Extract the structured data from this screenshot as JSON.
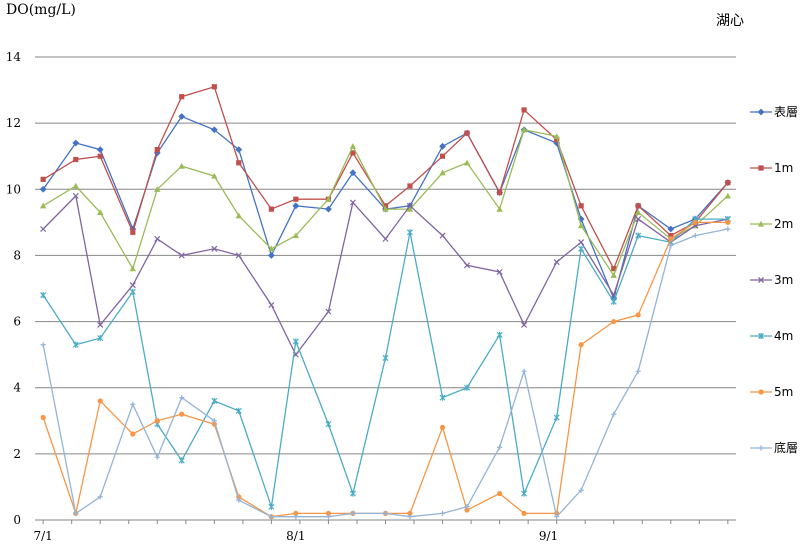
{
  "chart_data": {
    "type": "line",
    "title": "湖心",
    "ylabel": "DO(mg/L)",
    "xlabel": "",
    "ylim": [
      0,
      14
    ],
    "yticks": [
      0,
      2,
      4,
      6,
      8,
      10,
      12,
      14
    ],
    "grid": true,
    "legend_position": "right",
    "x_ticks": [
      {
        "label": "7/1",
        "x": 1
      },
      {
        "label": "8/1",
        "x": 32
      },
      {
        "label": "9/1",
        "x": 63
      }
    ],
    "x": [
      1,
      5,
      8,
      12,
      15,
      18,
      22,
      25,
      29,
      32,
      36,
      39,
      43,
      46,
      50,
      53,
      57,
      60,
      64,
      67,
      71,
      74,
      78,
      81,
      85
    ],
    "series": [
      {
        "name": "表層",
        "color": "#4472c4",
        "marker": "diamond",
        "values": [
          10.0,
          11.4,
          11.2,
          8.8,
          11.1,
          12.2,
          11.8,
          11.2,
          8.0,
          9.5,
          9.4,
          10.5,
          9.4,
          9.5,
          11.3,
          11.7,
          9.9,
          11.8,
          11.4,
          9.1,
          6.7,
          9.5,
          8.8,
          9.1,
          10.2
        ]
      },
      {
        "name": "1m",
        "color": "#c0504d",
        "marker": "square",
        "values": [
          10.3,
          10.9,
          11.0,
          8.7,
          11.2,
          12.8,
          13.1,
          10.8,
          9.4,
          9.7,
          9.7,
          11.1,
          9.5,
          10.1,
          11.0,
          11.7,
          9.9,
          12.4,
          11.5,
          9.5,
          7.6,
          9.5,
          8.6,
          9.0,
          10.2
        ]
      },
      {
        "name": "2m",
        "color": "#9bbb59",
        "marker": "triangle",
        "values": [
          9.5,
          10.1,
          9.3,
          7.6,
          10.0,
          10.7,
          10.4,
          9.2,
          8.2,
          8.6,
          9.7,
          11.3,
          9.4,
          9.4,
          10.5,
          10.8,
          9.4,
          11.8,
          11.6,
          8.9,
          7.4,
          9.3,
          8.5,
          8.9,
          9.8
        ]
      },
      {
        "name": "3m",
        "color": "#8064a2",
        "marker": "x",
        "values": [
          8.8,
          9.8,
          5.9,
          7.1,
          8.5,
          8.0,
          8.2,
          8.0,
          6.5,
          5.0,
          6.3,
          9.6,
          8.5,
          9.5,
          8.6,
          7.7,
          7.5,
          5.9,
          7.8,
          8.4,
          6.8,
          9.1,
          8.4,
          8.9,
          9.1
        ]
      },
      {
        "name": "4m",
        "color": "#4bacc6",
        "marker": "star",
        "values": [
          6.8,
          5.3,
          5.5,
          6.9,
          2.9,
          1.8,
          3.6,
          3.3,
          0.4,
          5.4,
          2.9,
          0.8,
          4.9,
          8.7,
          3.7,
          4.0,
          5.6,
          0.8,
          3.1,
          8.2,
          6.6,
          8.6,
          8.4,
          9.1,
          9.1
        ]
      },
      {
        "name": "5m",
        "color": "#f79646",
        "marker": "circle",
        "values": [
          3.1,
          0.2,
          3.6,
          2.6,
          3.0,
          3.2,
          2.9,
          0.7,
          0.1,
          0.2,
          0.2,
          0.2,
          0.2,
          0.2,
          2.8,
          0.3,
          0.8,
          0.2,
          0.2,
          5.3,
          6.0,
          6.2,
          8.5,
          9.0,
          9.0
        ]
      },
      {
        "name": "底層",
        "color": "#95b3d7",
        "marker": "plus",
        "values": [
          5.3,
          0.2,
          0.7,
          3.5,
          1.9,
          3.7,
          3.0,
          0.6,
          0.1,
          0.1,
          0.1,
          0.2,
          0.2,
          0.1,
          0.2,
          0.4,
          2.2,
          4.5,
          0.1,
          0.9,
          3.2,
          4.5,
          8.3,
          8.6,
          8.8
        ]
      }
    ]
  }
}
